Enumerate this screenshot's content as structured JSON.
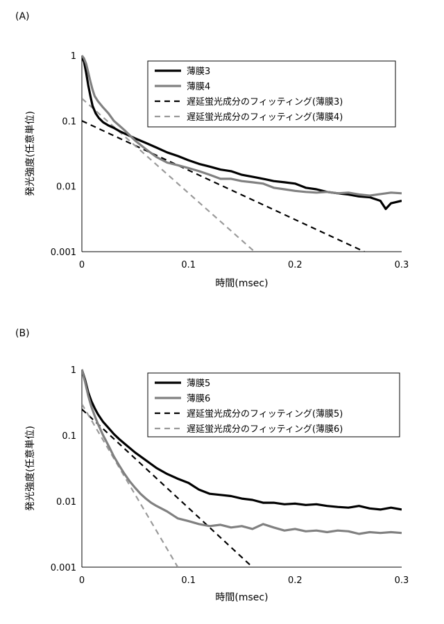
{
  "chart_data": [
    {
      "type": "line",
      "panel_label": "(A)",
      "xlabel": "時間(msec)",
      "ylabel": "発光強度(任意単位)",
      "xlim": [
        0,
        0.3
      ],
      "ylim": [
        0.001,
        1
      ],
      "yscale": "log",
      "x_ticks": [
        "0",
        "0.1",
        "0.2",
        "0.3"
      ],
      "y_ticks": [
        "1",
        "0.1",
        "0.01",
        "0.001"
      ],
      "grid": false,
      "legend_position": "top-right",
      "series": [
        {
          "name": "薄膜3",
          "style": "solid",
          "color": "#000000",
          "x": [
            0,
            0.002,
            0.004,
            0.006,
            0.008,
            0.01,
            0.013,
            0.016,
            0.02,
            0.025,
            0.03,
            0.035,
            0.04,
            0.05,
            0.06,
            0.07,
            0.08,
            0.09,
            0.1,
            0.11,
            0.12,
            0.13,
            0.14,
            0.15,
            0.16,
            0.17,
            0.18,
            0.19,
            0.2,
            0.21,
            0.22,
            0.23,
            0.24,
            0.25,
            0.26,
            0.27,
            0.28,
            0.285,
            0.29,
            0.3
          ],
          "y": [
            0.95,
            0.8,
            0.55,
            0.35,
            0.24,
            0.17,
            0.13,
            0.11,
            0.095,
            0.085,
            0.078,
            0.07,
            0.064,
            0.054,
            0.046,
            0.039,
            0.033,
            0.029,
            0.025,
            0.022,
            0.02,
            0.018,
            0.017,
            0.015,
            0.014,
            0.013,
            0.012,
            0.0115,
            0.011,
            0.0095,
            0.009,
            0.0082,
            0.0078,
            0.0075,
            0.007,
            0.0068,
            0.006,
            0.0045,
            0.0055,
            0.006
          ]
        },
        {
          "name": "薄膜4",
          "style": "solid",
          "color": "#808080",
          "x": [
            0,
            0.002,
            0.004,
            0.006,
            0.008,
            0.01,
            0.012,
            0.015,
            0.02,
            0.025,
            0.03,
            0.035,
            0.04,
            0.05,
            0.06,
            0.07,
            0.08,
            0.09,
            0.1,
            0.11,
            0.12,
            0.13,
            0.14,
            0.15,
            0.16,
            0.17,
            0.18,
            0.19,
            0.2,
            0.21,
            0.22,
            0.23,
            0.24,
            0.25,
            0.26,
            0.27,
            0.28,
            0.29,
            0.3
          ],
          "y": [
            1.0,
            0.9,
            0.75,
            0.55,
            0.4,
            0.3,
            0.24,
            0.2,
            0.16,
            0.13,
            0.1,
            0.085,
            0.072,
            0.05,
            0.037,
            0.028,
            0.023,
            0.021,
            0.019,
            0.017,
            0.015,
            0.013,
            0.013,
            0.012,
            0.0115,
            0.011,
            0.0095,
            0.009,
            0.0085,
            0.0082,
            0.008,
            0.0082,
            0.0078,
            0.008,
            0.0075,
            0.0072,
            0.0076,
            0.008,
            0.0078
          ]
        },
        {
          "name": "遅延蛍光成分のフィッティング(薄膜3)",
          "style": "dashed",
          "color": "#000000",
          "x": [
            0,
            0.265
          ],
          "y": [
            0.1,
            0.001
          ]
        },
        {
          "name": "遅延蛍光成分のフィッティング(薄膜4)",
          "style": "dashed",
          "color": "#9a9a9a",
          "x": [
            0,
            0.162
          ],
          "y": [
            0.22,
            0.001
          ]
        }
      ]
    },
    {
      "type": "line",
      "panel_label": "(B)",
      "xlabel": "時間(msec)",
      "ylabel": "発光強度(任意単位)",
      "xlim": [
        0,
        0.3
      ],
      "ylim": [
        0.001,
        1
      ],
      "yscale": "log",
      "x_ticks": [
        "0",
        "0.1",
        "0.2",
        "0.3"
      ],
      "y_ticks": [
        "1",
        "0.1",
        "0.01",
        "0.001"
      ],
      "grid": false,
      "legend_position": "top-right",
      "series": [
        {
          "name": "薄膜5",
          "style": "solid",
          "color": "#000000",
          "x": [
            0,
            0.003,
            0.006,
            0.009,
            0.012,
            0.015,
            0.02,
            0.025,
            0.03,
            0.035,
            0.04,
            0.05,
            0.06,
            0.07,
            0.08,
            0.09,
            0.1,
            0.11,
            0.12,
            0.13,
            0.14,
            0.15,
            0.16,
            0.17,
            0.18,
            0.19,
            0.2,
            0.21,
            0.22,
            0.23,
            0.24,
            0.25,
            0.26,
            0.27,
            0.28,
            0.29,
            0.3
          ],
          "y": [
            1.0,
            0.7,
            0.45,
            0.33,
            0.26,
            0.21,
            0.16,
            0.13,
            0.105,
            0.088,
            0.075,
            0.055,
            0.042,
            0.032,
            0.026,
            0.022,
            0.019,
            0.015,
            0.013,
            0.0125,
            0.012,
            0.011,
            0.0105,
            0.0095,
            0.0095,
            0.009,
            0.0092,
            0.0088,
            0.009,
            0.0085,
            0.0082,
            0.008,
            0.0085,
            0.0078,
            0.0075,
            0.008,
            0.0075
          ]
        },
        {
          "name": "薄膜6",
          "style": "solid",
          "color": "#808080",
          "x": [
            0,
            0.003,
            0.006,
            0.009,
            0.012,
            0.015,
            0.02,
            0.025,
            0.03,
            0.035,
            0.04,
            0.045,
            0.05,
            0.055,
            0.06,
            0.065,
            0.07,
            0.08,
            0.09,
            0.1,
            0.11,
            0.12,
            0.13,
            0.14,
            0.15,
            0.16,
            0.17,
            0.18,
            0.19,
            0.2,
            0.21,
            0.22,
            0.23,
            0.24,
            0.25,
            0.26,
            0.27,
            0.28,
            0.29,
            0.3
          ],
          "y": [
            1.0,
            0.65,
            0.4,
            0.27,
            0.2,
            0.15,
            0.1,
            0.07,
            0.048,
            0.035,
            0.026,
            0.02,
            0.016,
            0.013,
            0.011,
            0.0095,
            0.0085,
            0.007,
            0.0055,
            0.005,
            0.0045,
            0.0042,
            0.0044,
            0.004,
            0.0042,
            0.0038,
            0.0045,
            0.004,
            0.0036,
            0.0038,
            0.0035,
            0.0036,
            0.0034,
            0.0036,
            0.0035,
            0.0032,
            0.0034,
            0.0033,
            0.0034,
            0.0033
          ]
        },
        {
          "name": "遅延蛍光成分のフィッティング(薄膜5)",
          "style": "dashed",
          "color": "#000000",
          "x": [
            0,
            0.16
          ],
          "y": [
            0.25,
            0.001
          ]
        },
        {
          "name": "遅延蛍光成分のフィッティング(薄膜6)",
          "style": "dashed",
          "color": "#9a9a9a",
          "x": [
            0,
            0.09
          ],
          "y": [
            0.3,
            0.001
          ]
        }
      ]
    }
  ]
}
